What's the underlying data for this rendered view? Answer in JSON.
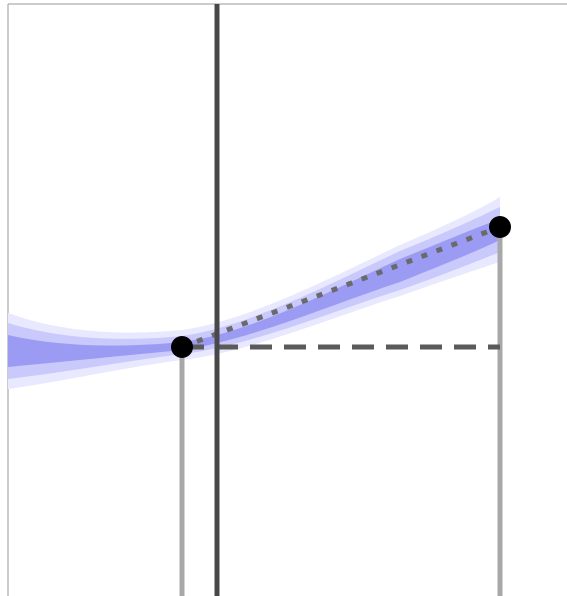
{
  "colors": {
    "background": "#ffffff",
    "frame": "#9a9a9a",
    "band_outer": "#e8e8ff",
    "band_mid": "#c9c9fb",
    "band_inner": "#9b9bf4",
    "marker_line": "#484848",
    "guide_line": "#a8a8a8",
    "dashed_line": "#5a5a5a",
    "dotted_line": "#6a6a6a",
    "point": "#000000"
  }
}
